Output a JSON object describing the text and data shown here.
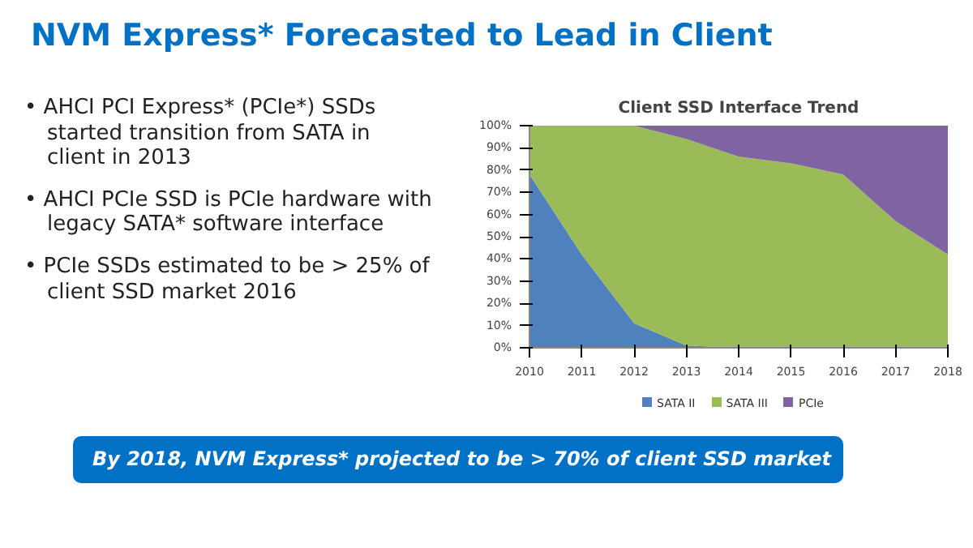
{
  "chart_data": {
    "type": "area",
    "stacked": true,
    "title": "Client SSD Interface Trend",
    "x": [
      2010,
      2011,
      2012,
      2013,
      2014,
      2015,
      2016,
      2017,
      2018
    ],
    "series": [
      {
        "name": "SATA II",
        "color": "#4f81bd",
        "values": [
          78,
          42,
          11,
          1,
          0,
          0,
          0,
          0,
          0
        ]
      },
      {
        "name": "SATA III",
        "color": "#9bbb59",
        "values": [
          22,
          58,
          89,
          93,
          86,
          83,
          78,
          57,
          42
        ]
      },
      {
        "name": "PCIe",
        "color": "#8064a2",
        "values": [
          0,
          0,
          0,
          6,
          14,
          17,
          22,
          43,
          58
        ]
      }
    ],
    "xlim": [
      2010,
      2018
    ],
    "xticks": [
      2010,
      2011,
      2012,
      2013,
      2014,
      2015,
      2016,
      2017,
      2018
    ],
    "ylim": [
      0,
      100
    ],
    "yticks": [
      {
        "value": 0,
        "label": "0%"
      },
      {
        "value": 10,
        "label": "10%"
      },
      {
        "value": 20,
        "label": "20%"
      },
      {
        "value": 30,
        "label": "30%"
      },
      {
        "value": 40,
        "label": "40%"
      },
      {
        "value": 50,
        "label": "50%"
      },
      {
        "value": 60,
        "label": "60%"
      },
      {
        "value": 70,
        "label": "70%"
      },
      {
        "value": 80,
        "label": "80%"
      },
      {
        "value": 90,
        "label": "90%"
      },
      {
        "value": 100,
        "label": "100%"
      }
    ],
    "legend": "bottom",
    "annotations": [
      "NVM Express* Forecasted to Lead in Client",
      "• AHCI PCI Express* (PCIe*) SSDs started transition from SATA in client in 2013",
      "• AHCI PCIe SSD is PCIe hardware with legacy SATA* software interface",
      "• PCIe SSDs estimated to be > 25% of client SSD market 2016",
      "By 2018, NVM Express* projected to be > 70% of client SSD market"
    ]
  }
}
